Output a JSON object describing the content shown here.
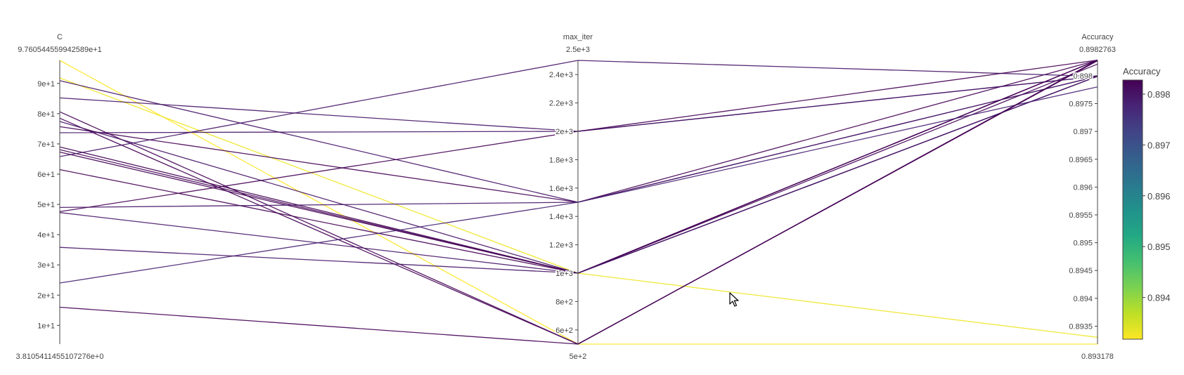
{
  "chart_data": {
    "type": "parcoords",
    "colorscale": "viridis-reversed",
    "axes": [
      {
        "label": "C",
        "max_label": "9.760544559942589e+1",
        "min_label": "3.8105411455107276e+0",
        "range": [
          3.8105411455107276,
          97.60544559942589
        ],
        "ticks": [
          10,
          20,
          30,
          40,
          50,
          60,
          70,
          80,
          90
        ],
        "tick_labels": [
          "1e+1",
          "2e+1",
          "3e+1",
          "4e+1",
          "5e+1",
          "6e+1",
          "7e+1",
          "8e+1",
          "9e+1"
        ]
      },
      {
        "label": "max_iter",
        "max_label": "2.5e+3",
        "min_label": "5e+2",
        "range": [
          500,
          2500
        ],
        "ticks": [
          600,
          800,
          1000,
          1200,
          1400,
          1600,
          1800,
          2000,
          2200,
          2400
        ],
        "tick_labels": [
          "6e+2",
          "8e+2",
          "1e+3",
          "1.2e+3",
          "1.4e+3",
          "1.6e+3",
          "1.8e+3",
          "2e+3",
          "2.2e+3",
          "2.4e+3"
        ]
      },
      {
        "label": "Accuracy",
        "max_label": "0.8982763",
        "min_label": "0.893178",
        "range": [
          0.893178,
          0.8982763
        ],
        "ticks": [
          0.8935,
          0.894,
          0.8945,
          0.895,
          0.8955,
          0.896,
          0.8965,
          0.897,
          0.8975,
          0.898
        ],
        "tick_labels": [
          "0.8935",
          "0.894",
          "0.8945",
          "0.895",
          "0.8955",
          "0.896",
          "0.8965",
          "0.897",
          "0.8975",
          "0.898"
        ]
      }
    ],
    "lines": [
      {
        "C": 97.6,
        "max_iter": 500,
        "Accuracy": 0.893178
      },
      {
        "C": 91.8,
        "max_iter": 1000,
        "Accuracy": 0.8933
      },
      {
        "C": 90.9,
        "max_iter": 1500,
        "Accuracy": 0.89799
      },
      {
        "C": 85.2,
        "max_iter": 2000,
        "Accuracy": 0.89799
      },
      {
        "C": 80.6,
        "max_iter": 500,
        "Accuracy": 0.89828
      },
      {
        "C": 78.5,
        "max_iter": 500,
        "Accuracy": 0.89827
      },
      {
        "C": 77.4,
        "max_iter": 1000,
        "Accuracy": 0.89799
      },
      {
        "C": 75.7,
        "max_iter": 1500,
        "Accuracy": 0.89828
      },
      {
        "C": 73.7,
        "max_iter": 2000,
        "Accuracy": 0.89799
      },
      {
        "C": 69.0,
        "max_iter": 1000,
        "Accuracy": 0.89828
      },
      {
        "C": 68.1,
        "max_iter": 1000,
        "Accuracy": 0.89821
      },
      {
        "C": 67.3,
        "max_iter": 1000,
        "Accuracy": 0.89828
      },
      {
        "C": 65.8,
        "max_iter": 2500,
        "Accuracy": 0.89799
      },
      {
        "C": 61.5,
        "max_iter": 1000,
        "Accuracy": 0.89828
      },
      {
        "C": 49.0,
        "max_iter": 1500,
        "Accuracy": 0.89799
      },
      {
        "C": 47.6,
        "max_iter": 2000,
        "Accuracy": 0.89828
      },
      {
        "C": 47.3,
        "max_iter": 1000,
        "Accuracy": 0.89799
      },
      {
        "C": 35.8,
        "max_iter": 1000,
        "Accuracy": 0.89799
      },
      {
        "C": 24.0,
        "max_iter": 1500,
        "Accuracy": 0.8978
      },
      {
        "C": 16.0,
        "max_iter": 500,
        "Accuracy": 0.89828
      }
    ],
    "colorbar": {
      "title": "Accuracy",
      "range": [
        0.893178,
        0.8982763
      ],
      "ticks": [
        0.894,
        0.895,
        0.896,
        0.897,
        0.898
      ],
      "tick_labels": [
        "0.894",
        "0.895",
        "0.896",
        "0.897",
        "0.898"
      ]
    }
  },
  "colors": {
    "low": "#fde725",
    "high": "#440154",
    "axis": "#444444"
  },
  "cursor_icon": "mouse-pointer-icon"
}
